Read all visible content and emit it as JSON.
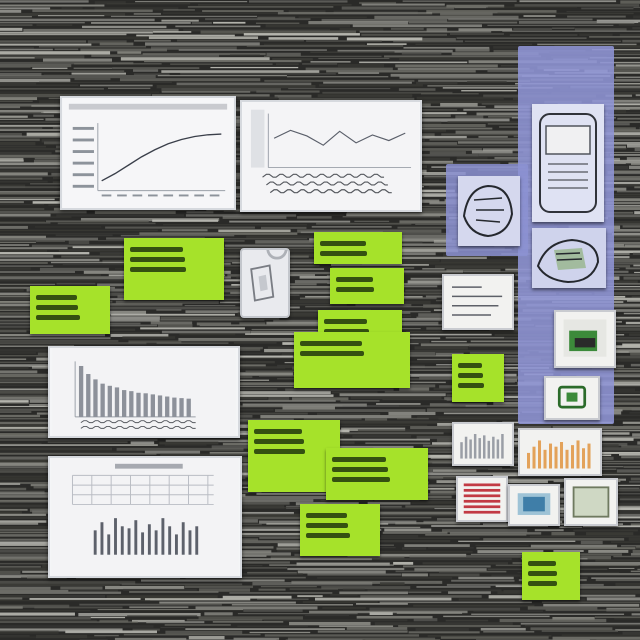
{
  "board": {
    "background": "#2a2a28",
    "stripe_colors": [
      "#5c5c57",
      "#8a8a84",
      "#3a3a36",
      "#b5b5ae",
      "#6e6e68"
    ],
    "note_color": "#a6e22a",
    "panel_color": "#8f95d6"
  },
  "cards": {
    "line_chart": {
      "title": "",
      "values": [
        0.1,
        0.22,
        0.36,
        0.5,
        0.62,
        0.72,
        0.79,
        0.84,
        0.87,
        0.88
      ]
    },
    "trend_chart": {
      "title": "",
      "values": [
        0.55,
        0.72,
        0.6,
        0.4,
        0.7,
        0.45,
        0.62,
        0.5,
        0.66
      ]
    },
    "bar_chart": {
      "title": "",
      "values": [
        0.95,
        0.8,
        0.7,
        0.62,
        0.58,
        0.55,
        0.5,
        0.48,
        0.45,
        0.44,
        0.42,
        0.4,
        0.38,
        0.36,
        0.35,
        0.34
      ]
    },
    "table_chart": {
      "title": "",
      "values": [
        0.6,
        0.8,
        0.5,
        0.9,
        0.7,
        0.65,
        0.85,
        0.55,
        0.75,
        0.6,
        0.9,
        0.7,
        0.5,
        0.8,
        0.6,
        0.7
      ]
    }
  },
  "notes": [
    {
      "lines": 3
    },
    {
      "lines": 3
    },
    {
      "lines": 2
    },
    {
      "lines": 2
    },
    {
      "lines": 3
    },
    {
      "lines": 2
    },
    {
      "lines": 3
    },
    {
      "lines": 3
    },
    {
      "lines": 3
    },
    {
      "lines": 3
    },
    {
      "lines": 3
    },
    {
      "lines": 3
    }
  ],
  "mini_cards": {
    "bars_a": [
      0.6,
      0.8,
      0.7,
      0.9,
      0.75,
      0.85,
      0.65,
      0.8,
      0.7,
      0.9
    ],
    "bars_b": [
      0.5,
      0.7,
      0.9,
      0.6,
      0.8,
      0.7,
      0.85,
      0.6,
      0.75,
      0.9,
      0.65,
      0.8
    ],
    "bars_c": [
      0.8,
      0.8,
      0.8,
      0.8,
      0.8,
      0.8
    ]
  },
  "icons": {
    "sketch_top": "tablet-sketch-icon",
    "sketch_mid": "hand-sketch-icon",
    "sketch_bottom": "hand-sketch-icon"
  }
}
